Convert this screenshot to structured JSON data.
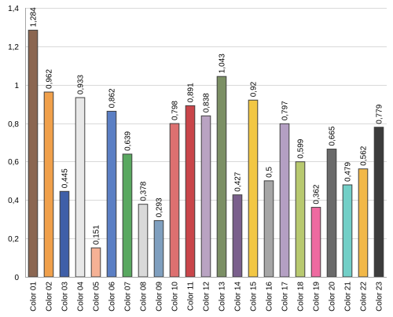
{
  "chart_data": {
    "type": "bar",
    "categories": [
      "Color 01",
      "Color 02",
      "Color 03",
      "Color 04",
      "Color 05",
      "Color 06",
      "Color 07",
      "Color 08",
      "Color 09",
      "Color 10",
      "Color 11",
      "Color 12",
      "Color 13",
      "Color 14",
      "Color 15",
      "Color 16",
      "Color 17",
      "Color 18",
      "Color 19",
      "Color 20",
      "Color 21",
      "Color 22",
      "Color 23"
    ],
    "values": [
      1.284,
      0.962,
      0.445,
      0.933,
      0.151,
      0.862,
      0.639,
      0.378,
      0.293,
      0.798,
      0.891,
      0.838,
      1.043,
      0.427,
      0.92,
      0.5,
      0.797,
      0.599,
      0.362,
      0.665,
      0.479,
      0.562,
      0.779
    ],
    "value_labels": [
      "1,284",
      "0,962",
      "0,445",
      "0,933",
      "0,151",
      "0,862",
      "0,639",
      "0,378",
      "0,293",
      "0,798",
      "0,891",
      "0,838",
      "1,043",
      "0,427",
      "0,92",
      "0,5",
      "0,797",
      "0,599",
      "0,362",
      "0,665",
      "0,479",
      "0,562",
      "0,779"
    ],
    "bar_colors": [
      "#8b6651",
      "#f0a04b",
      "#3f5fa8",
      "#e8e8e8",
      "#f5b195",
      "#5b7fc4",
      "#59a860",
      "#d9d9d9",
      "#7f9fbf",
      "#dd7070",
      "#c9454a",
      "#b9a3c2",
      "#7b8f64",
      "#7a5f8c",
      "#f2c744",
      "#a6a6a6",
      "#b49fc3",
      "#b8c96f",
      "#ee6aa0",
      "#6a6a6a",
      "#72cfc7",
      "#f2b848",
      "#3c3c3c"
    ],
    "y_ticks": [
      "0",
      "0,2",
      "0,4",
      "0,6",
      "0,8",
      "1",
      "1,2",
      "1,4"
    ],
    "ylim": [
      0,
      1.4
    ],
    "title": "",
    "xlabel": "",
    "ylabel": "",
    "grid": true,
    "legend": "none"
  }
}
